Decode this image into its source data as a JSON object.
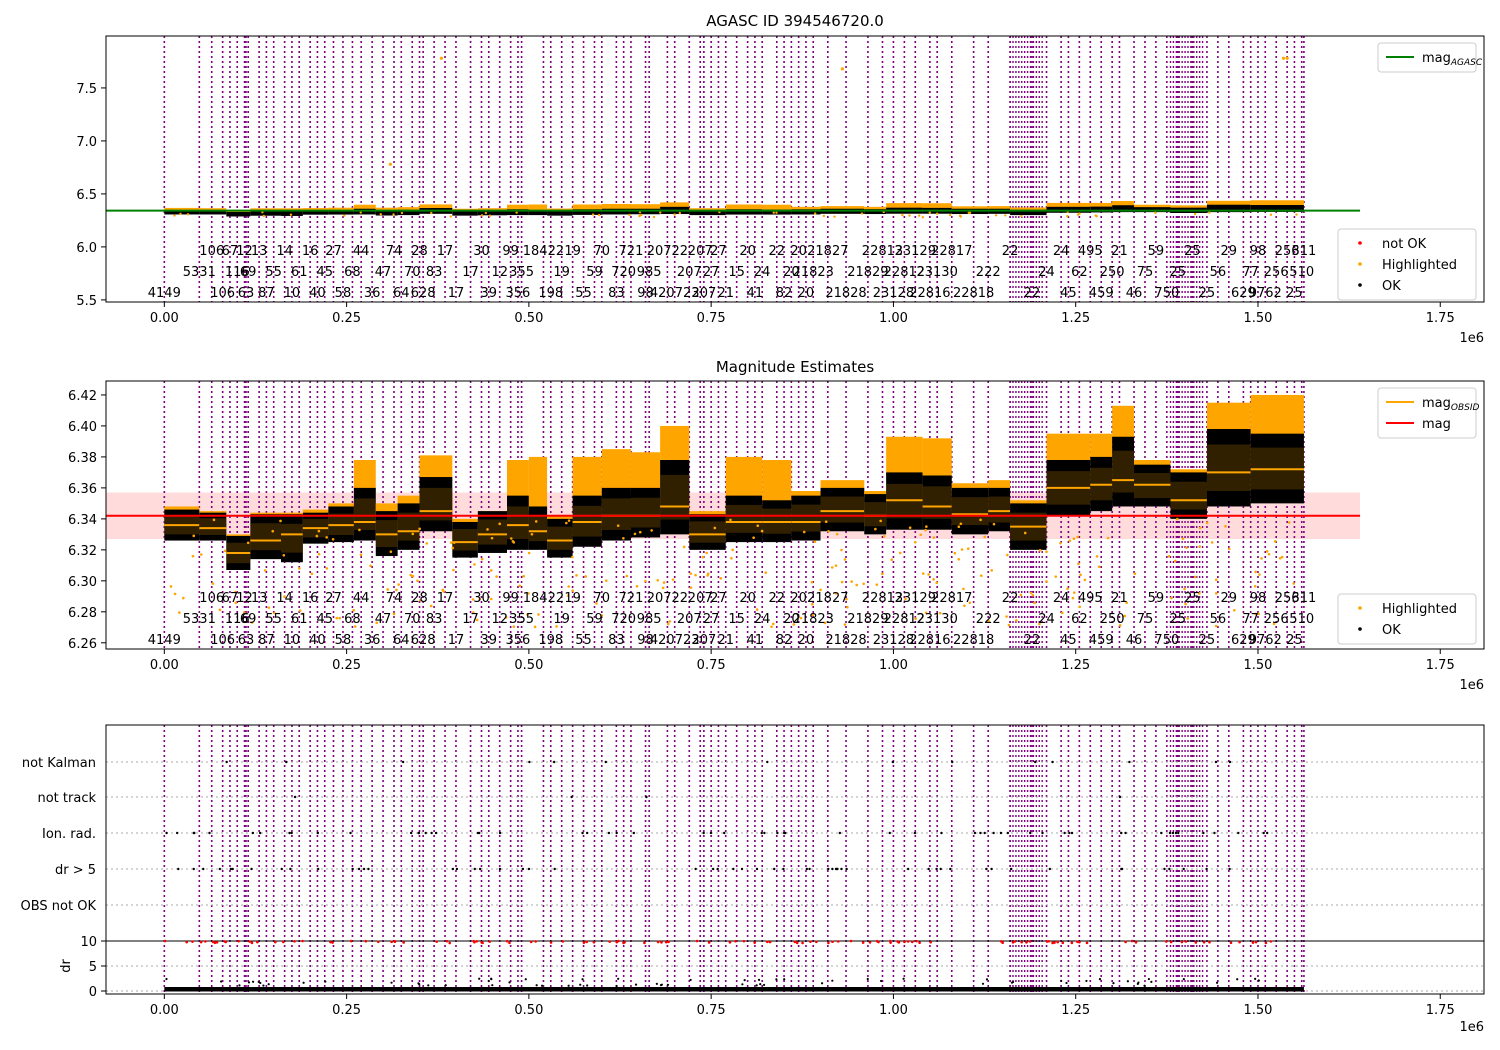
{
  "chart_data": [
    {
      "type": "scatter",
      "title": "AGASC ID 394546720.0",
      "xlabel": "",
      "ylabel": "",
      "x_offset_label": "1e6",
      "xlim": [
        -0.08,
        1.81
      ],
      "ylim": [
        5.48,
        7.99
      ],
      "x_ticks": [
        0.0,
        0.25,
        0.5,
        0.75,
        1.0,
        1.25,
        1.5,
        1.75
      ],
      "x_tick_labels": [
        "0.00",
        "0.25",
        "0.50",
        "0.75",
        "1.00",
        "1.25",
        "1.50",
        "1.75"
      ],
      "y_ticks": [
        5.5,
        6.0,
        6.5,
        7.0,
        7.5
      ],
      "y_tick_labels": [
        "5.5",
        "6.0",
        "6.5",
        "7.0",
        "7.5"
      ],
      "grid": false,
      "legends": [
        {
          "placement": "top-right",
          "entries": [
            {
              "label": "mag",
              "sub": "AGASC",
              "kind": "line",
              "color": "#008000"
            }
          ]
        },
        {
          "placement": "bottom-right",
          "entries": [
            {
              "label": "not OK",
              "kind": "dot",
              "color": "#ff0000"
            },
            {
              "label": "Highlighted",
              "kind": "dot",
              "color": "#ffa500"
            },
            {
              "label": "OK",
              "kind": "dot",
              "color": "#000000"
            }
          ]
        }
      ],
      "reference_line": {
        "y": 6.342,
        "xmax": 1.64,
        "color": "#008000"
      },
      "series": [
        {
          "name": "OK",
          "color": "#000000",
          "x_range": [
            0.0,
            1.563
          ],
          "approx_y": [
            6.33,
            6.37
          ]
        },
        {
          "name": "Highlighted",
          "color": "#ffa500",
          "outliers": [
            [
              0.38,
              7.78
            ],
            [
              0.93,
              7.68
            ],
            [
              1.54,
              7.78
            ],
            [
              1.535,
              7.78
            ],
            [
              0.31,
              6.78
            ]
          ]
        }
      ]
    },
    {
      "type": "scatter",
      "title": "Magnitude Estimates",
      "xlabel": "",
      "ylabel": "",
      "x_offset_label": "1e6",
      "xlim": [
        -0.08,
        1.81
      ],
      "ylim": [
        6.256,
        6.429
      ],
      "x_ticks": [
        0.0,
        0.25,
        0.5,
        0.75,
        1.0,
        1.25,
        1.5,
        1.75
      ],
      "x_tick_labels": [
        "0.00",
        "0.25",
        "0.50",
        "0.75",
        "1.00",
        "1.25",
        "1.50",
        "1.75"
      ],
      "y_ticks": [
        6.26,
        6.28,
        6.3,
        6.32,
        6.34,
        6.36,
        6.38,
        6.4,
        6.42
      ],
      "y_tick_labels": [
        "6.26",
        "6.28",
        "6.30",
        "6.32",
        "6.34",
        "6.36",
        "6.38",
        "6.40",
        "6.42"
      ],
      "grid": false,
      "legends": [
        {
          "placement": "top-right",
          "entries": [
            {
              "label": "mag",
              "sub": "OBSID",
              "kind": "line",
              "color": "#ffa500"
            },
            {
              "label": "mag",
              "kind": "line",
              "color": "#ff0000"
            }
          ]
        },
        {
          "placement": "bottom-right",
          "entries": [
            {
              "label": "Highlighted",
              "kind": "dot",
              "color": "#ffa500"
            },
            {
              "label": "OK",
              "kind": "dot",
              "color": "#000000"
            }
          ]
        }
      ],
      "mag": {
        "value": 6.342,
        "band": [
          6.327,
          6.357
        ],
        "xmax": 1.64,
        "color": "#ff0000"
      },
      "segments": [
        {
          "x0": 0.0,
          "x1": 0.048,
          "mean": 6.336,
          "lo": 6.326,
          "hi": 6.346,
          "hl": 6.348
        },
        {
          "x0": 0.048,
          "x1": 0.085,
          "mean": 6.334,
          "lo": 6.326,
          "hi": 6.344,
          "hl": 6.345
        },
        {
          "x0": 0.085,
          "x1": 0.118,
          "mean": 6.318,
          "lo": 6.307,
          "hi": 6.329,
          "hl": 6.33
        },
        {
          "x0": 0.118,
          "x1": 0.16,
          "mean": 6.326,
          "lo": 6.314,
          "hi": 6.343,
          "hl": 6.344
        },
        {
          "x0": 0.16,
          "x1": 0.19,
          "mean": 6.33,
          "lo": 6.312,
          "hi": 6.343,
          "hl": 6.344
        },
        {
          "x0": 0.19,
          "x1": 0.225,
          "mean": 6.334,
          "lo": 6.324,
          "hi": 6.344,
          "hl": 6.346
        },
        {
          "x0": 0.225,
          "x1": 0.26,
          "mean": 6.336,
          "lo": 6.325,
          "hi": 6.348,
          "hl": 6.35
        },
        {
          "x0": 0.26,
          "x1": 0.29,
          "mean": 6.338,
          "lo": 6.326,
          "hi": 6.36,
          "hl": 6.378
        },
        {
          "x0": 0.29,
          "x1": 0.32,
          "mean": 6.33,
          "lo": 6.316,
          "hi": 6.345,
          "hl": 6.35
        },
        {
          "x0": 0.32,
          "x1": 0.35,
          "mean": 6.332,
          "lo": 6.32,
          "hi": 6.35,
          "hl": 6.355
        },
        {
          "x0": 0.35,
          "x1": 0.395,
          "mean": 6.345,
          "lo": 6.332,
          "hi": 6.367,
          "hl": 6.381
        },
        {
          "x0": 0.395,
          "x1": 0.43,
          "mean": 6.325,
          "lo": 6.315,
          "hi": 6.338,
          "hl": 6.34
        },
        {
          "x0": 0.43,
          "x1": 0.47,
          "mean": 6.33,
          "lo": 6.318,
          "hi": 6.345,
          "hl": 6.345
        },
        {
          "x0": 0.47,
          "x1": 0.5,
          "mean": 6.336,
          "lo": 6.32,
          "hi": 6.355,
          "hl": 6.378
        },
        {
          "x0": 0.5,
          "x1": 0.525,
          "mean": 6.332,
          "lo": 6.32,
          "hi": 6.348,
          "hl": 6.38
        },
        {
          "x0": 0.525,
          "x1": 0.56,
          "mean": 6.326,
          "lo": 6.315,
          "hi": 6.34,
          "hl": 6.342
        },
        {
          "x0": 0.56,
          "x1": 0.6,
          "mean": 6.338,
          "lo": 6.322,
          "hi": 6.355,
          "hl": 6.38
        },
        {
          "x0": 0.6,
          "x1": 0.64,
          "mean": 6.342,
          "lo": 6.326,
          "hi": 6.36,
          "hl": 6.385
        },
        {
          "x0": 0.64,
          "x1": 0.68,
          "mean": 6.342,
          "lo": 6.328,
          "hi": 6.36,
          "hl": 6.383
        },
        {
          "x0": 0.68,
          "x1": 0.72,
          "mean": 6.348,
          "lo": 6.33,
          "hi": 6.378,
          "hl": 6.4
        },
        {
          "x0": 0.72,
          "x1": 0.77,
          "mean": 6.33,
          "lo": 6.32,
          "hi": 6.343,
          "hl": 6.345
        },
        {
          "x0": 0.77,
          "x1": 0.82,
          "mean": 6.338,
          "lo": 6.325,
          "hi": 6.355,
          "hl": 6.38
        },
        {
          "x0": 0.82,
          "x1": 0.86,
          "mean": 6.338,
          "lo": 6.325,
          "hi": 6.352,
          "hl": 6.378
        },
        {
          "x0": 0.86,
          "x1": 0.9,
          "mean": 6.338,
          "lo": 6.326,
          "hi": 6.355,
          "hl": 6.358
        },
        {
          "x0": 0.9,
          "x1": 0.96,
          "mean": 6.345,
          "lo": 6.332,
          "hi": 6.36,
          "hl": 6.365
        },
        {
          "x0": 0.96,
          "x1": 0.99,
          "mean": 6.342,
          "lo": 6.33,
          "hi": 6.356,
          "hl": 6.358
        },
        {
          "x0": 0.99,
          "x1": 1.04,
          "mean": 6.352,
          "lo": 6.333,
          "hi": 6.37,
          "hl": 6.393
        },
        {
          "x0": 1.04,
          "x1": 1.08,
          "mean": 6.348,
          "lo": 6.333,
          "hi": 6.368,
          "hl": 6.392
        },
        {
          "x0": 1.08,
          "x1": 1.13,
          "mean": 6.343,
          "lo": 6.33,
          "hi": 6.36,
          "hl": 6.363
        },
        {
          "x0": 1.13,
          "x1": 1.16,
          "mean": 6.345,
          "lo": 6.332,
          "hi": 6.36,
          "hl": 6.365
        },
        {
          "x0": 1.16,
          "x1": 1.21,
          "mean": 6.335,
          "lo": 6.32,
          "hi": 6.35,
          "hl": 6.352
        },
        {
          "x0": 1.21,
          "x1": 1.27,
          "mean": 6.36,
          "lo": 6.342,
          "hi": 6.378,
          "hl": 6.395
        },
        {
          "x0": 1.27,
          "x1": 1.3,
          "mean": 6.362,
          "lo": 6.345,
          "hi": 6.38,
          "hl": 6.395
        },
        {
          "x0": 1.3,
          "x1": 1.33,
          "mean": 6.365,
          "lo": 6.348,
          "hi": 6.393,
          "hl": 6.413
        },
        {
          "x0": 1.33,
          "x1": 1.38,
          "mean": 6.362,
          "lo": 6.348,
          "hi": 6.375,
          "hl": 6.378
        },
        {
          "x0": 1.38,
          "x1": 1.43,
          "mean": 6.352,
          "lo": 6.34,
          "hi": 6.37,
          "hl": 6.372
        },
        {
          "x0": 1.43,
          "x1": 1.49,
          "mean": 6.37,
          "lo": 6.348,
          "hi": 6.398,
          "hl": 6.415
        },
        {
          "x0": 1.49,
          "x1": 1.563,
          "mean": 6.372,
          "lo": 6.35,
          "hi": 6.395,
          "hl": 6.42
        }
      ]
    },
    {
      "type": "scatter",
      "title": "",
      "xlabel": "",
      "ylabel": "dr",
      "x_offset_label": "1e6",
      "xlim": [
        -0.08,
        1.81
      ],
      "x_ticks": [
        0.0,
        0.25,
        0.5,
        0.75,
        1.0,
        1.25,
        1.5,
        1.75
      ],
      "x_tick_labels": [
        "0.00",
        "0.25",
        "0.50",
        "0.75",
        "1.00",
        "1.25",
        "1.50",
        "1.75"
      ],
      "flag_rows": [
        "not Kalman",
        "not track",
        "Ion. rad.",
        "dr > 5",
        "OBS not OK"
      ],
      "dr_ticks": [
        0,
        5,
        10
      ],
      "dr_tick_labels": [
        "0",
        "5",
        "10"
      ],
      "dr_threshold": 10,
      "grid": true
    }
  ],
  "obsids": [
    {
      "x": 0.0,
      "row": 3,
      "label": "4149"
    },
    {
      "x": 0.048,
      "row": 2,
      "label": "5331"
    },
    {
      "x": 0.065,
      "row": 1,
      "label": "106"
    },
    {
      "x": 0.08,
      "row": 3,
      "label": "106"
    },
    {
      "x": 0.09,
      "row": 1,
      "label": "67"
    },
    {
      "x": 0.1,
      "row": 2,
      "label": "116"
    },
    {
      "x": 0.11,
      "row": 1,
      "label": "12"
    },
    {
      "x": 0.112,
      "row": 3,
      "label": "63"
    },
    {
      "x": 0.115,
      "row": 2,
      "label": "69"
    },
    {
      "x": 0.13,
      "row": 1,
      "label": "13"
    },
    {
      "x": 0.14,
      "row": 3,
      "label": "87"
    },
    {
      "x": 0.15,
      "row": 2,
      "label": "55"
    },
    {
      "x": 0.165,
      "row": 1,
      "label": "14"
    },
    {
      "x": 0.175,
      "row": 3,
      "label": "10"
    },
    {
      "x": 0.185,
      "row": 2,
      "label": "61"
    },
    {
      "x": 0.2,
      "row": 1,
      "label": "16"
    },
    {
      "x": 0.21,
      "row": 3,
      "label": "40"
    },
    {
      "x": 0.22,
      "row": 2,
      "label": "45"
    },
    {
      "x": 0.232,
      "row": 1,
      "label": "27"
    },
    {
      "x": 0.245,
      "row": 3,
      "label": "58"
    },
    {
      "x": 0.258,
      "row": 2,
      "label": "68"
    },
    {
      "x": 0.27,
      "row": 1,
      "label": "44"
    },
    {
      "x": 0.285,
      "row": 3,
      "label": "36"
    },
    {
      "x": 0.3,
      "row": 2,
      "label": "47"
    },
    {
      "x": 0.315,
      "row": 1,
      "label": "74"
    },
    {
      "x": 0.325,
      "row": 3,
      "label": "64"
    },
    {
      "x": 0.34,
      "row": 2,
      "label": "70"
    },
    {
      "x": 0.35,
      "row": 1,
      "label": "28"
    },
    {
      "x": 0.355,
      "row": 3,
      "label": "628"
    },
    {
      "x": 0.37,
      "row": 2,
      "label": "83"
    },
    {
      "x": 0.385,
      "row": 1,
      "label": "17"
    },
    {
      "x": 0.4,
      "row": 3,
      "label": "17"
    },
    {
      "x": 0.42,
      "row": 2,
      "label": "17"
    },
    {
      "x": 0.435,
      "row": 1,
      "label": "30"
    },
    {
      "x": 0.445,
      "row": 3,
      "label": "39"
    },
    {
      "x": 0.46,
      "row": 2,
      "label": "12"
    },
    {
      "x": 0.475,
      "row": 1,
      "label": "99"
    },
    {
      "x": 0.485,
      "row": 3,
      "label": "356"
    },
    {
      "x": 0.49,
      "row": 2,
      "label": "355"
    },
    {
      "x": 0.52,
      "row": 1,
      "label": "18422"
    },
    {
      "x": 0.53,
      "row": 3,
      "label": "198"
    },
    {
      "x": 0.545,
      "row": 2,
      "label": "19"
    },
    {
      "x": 0.56,
      "row": 1,
      "label": "19"
    },
    {
      "x": 0.575,
      "row": 3,
      "label": "55"
    },
    {
      "x": 0.59,
      "row": 2,
      "label": "59"
    },
    {
      "x": 0.6,
      "row": 1,
      "label": "70"
    },
    {
      "x": 0.62,
      "row": 3,
      "label": "83"
    },
    {
      "x": 0.63,
      "row": 2,
      "label": "720"
    },
    {
      "x": 0.64,
      "row": 1,
      "label": "721"
    },
    {
      "x": 0.66,
      "row": 3,
      "label": "98"
    },
    {
      "x": 0.665,
      "row": 2,
      "label": "985"
    },
    {
      "x": 0.69,
      "row": 1,
      "label": "20722"
    },
    {
      "x": 0.7,
      "row": 3,
      "label": "420723"
    },
    {
      "x": 0.72,
      "row": 2,
      "label": "207"
    },
    {
      "x": 0.735,
      "row": 1,
      "label": "207"
    },
    {
      "x": 0.74,
      "row": 3,
      "label": "207"
    },
    {
      "x": 0.75,
      "row": 2,
      "label": "27"
    },
    {
      "x": 0.76,
      "row": 1,
      "label": "27"
    },
    {
      "x": 0.77,
      "row": 3,
      "label": "21"
    },
    {
      "x": 0.785,
      "row": 2,
      "label": "15"
    },
    {
      "x": 0.8,
      "row": 1,
      "label": "20"
    },
    {
      "x": 0.81,
      "row": 3,
      "label": "41"
    },
    {
      "x": 0.82,
      "row": 2,
      "label": "24"
    },
    {
      "x": 0.84,
      "row": 1,
      "label": "22"
    },
    {
      "x": 0.85,
      "row": 3,
      "label": "82"
    },
    {
      "x": 0.86,
      "row": 2,
      "label": "20"
    },
    {
      "x": 0.87,
      "row": 1,
      "label": "20"
    },
    {
      "x": 0.88,
      "row": 3,
      "label": "20"
    },
    {
      "x": 0.89,
      "row": 2,
      "label": "21823"
    },
    {
      "x": 0.91,
      "row": 1,
      "label": "21827"
    },
    {
      "x": 0.935,
      "row": 3,
      "label": "21828"
    },
    {
      "x": 0.965,
      "row": 2,
      "label": "21829"
    },
    {
      "x": 0.985,
      "row": 1,
      "label": "22813"
    },
    {
      "x": 1.0,
      "row": 3,
      "label": "23128"
    },
    {
      "x": 1.015,
      "row": 2,
      "label": "22812"
    },
    {
      "x": 1.03,
      "row": 1,
      "label": "23129"
    },
    {
      "x": 1.05,
      "row": 3,
      "label": "22816"
    },
    {
      "x": 1.06,
      "row": 2,
      "label": "23130"
    },
    {
      "x": 1.08,
      "row": 1,
      "label": "22817"
    },
    {
      "x": 1.11,
      "row": 3,
      "label": "22818"
    },
    {
      "x": 1.13,
      "row": 2,
      "label": "222"
    },
    {
      "x": 1.16,
      "row": 1,
      "label": "22"
    },
    {
      "x": 1.19,
      "row": 3,
      "label": "22"
    },
    {
      "x": 1.21,
      "row": 2,
      "label": "24"
    },
    {
      "x": 1.23,
      "row": 1,
      "label": "24"
    },
    {
      "x": 1.24,
      "row": 3,
      "label": "45"
    },
    {
      "x": 1.255,
      "row": 2,
      "label": "62"
    },
    {
      "x": 1.27,
      "row": 1,
      "label": "495"
    },
    {
      "x": 1.285,
      "row": 3,
      "label": "459"
    },
    {
      "x": 1.3,
      "row": 2,
      "label": "250"
    },
    {
      "x": 1.31,
      "row": 1,
      "label": "21"
    },
    {
      "x": 1.33,
      "row": 3,
      "label": "46"
    },
    {
      "x": 1.345,
      "row": 2,
      "label": "75"
    },
    {
      "x": 1.36,
      "row": 1,
      "label": "59"
    },
    {
      "x": 1.375,
      "row": 3,
      "label": "750"
    },
    {
      "x": 1.39,
      "row": 2,
      "label": "25"
    },
    {
      "x": 1.41,
      "row": 1,
      "label": "25"
    },
    {
      "x": 1.43,
      "row": 3,
      "label": "25"
    },
    {
      "x": 1.445,
      "row": 2,
      "label": "56"
    },
    {
      "x": 1.46,
      "row": 1,
      "label": "29"
    },
    {
      "x": 1.48,
      "row": 3,
      "label": "629"
    },
    {
      "x": 1.49,
      "row": 2,
      "label": "77"
    },
    {
      "x": 1.5,
      "row": 1,
      "label": "98"
    },
    {
      "x": 1.51,
      "row": 3,
      "label": "9762"
    },
    {
      "x": 1.525,
      "row": 2,
      "label": "256"
    },
    {
      "x": 1.54,
      "row": 1,
      "label": "256"
    },
    {
      "x": 1.55,
      "row": 3,
      "label": "25"
    },
    {
      "x": 1.563,
      "row": 1,
      "label": "311"
    },
    {
      "x": 1.56,
      "row": 2,
      "label": "510"
    }
  ],
  "colors": {
    "ok": "#000000",
    "highlighted": "#ffa500",
    "not_ok": "#ff0000",
    "agasc_line": "#008000",
    "mag_line": "#ff0000",
    "band": "#ffcccc",
    "obsid_line": "#800080"
  }
}
